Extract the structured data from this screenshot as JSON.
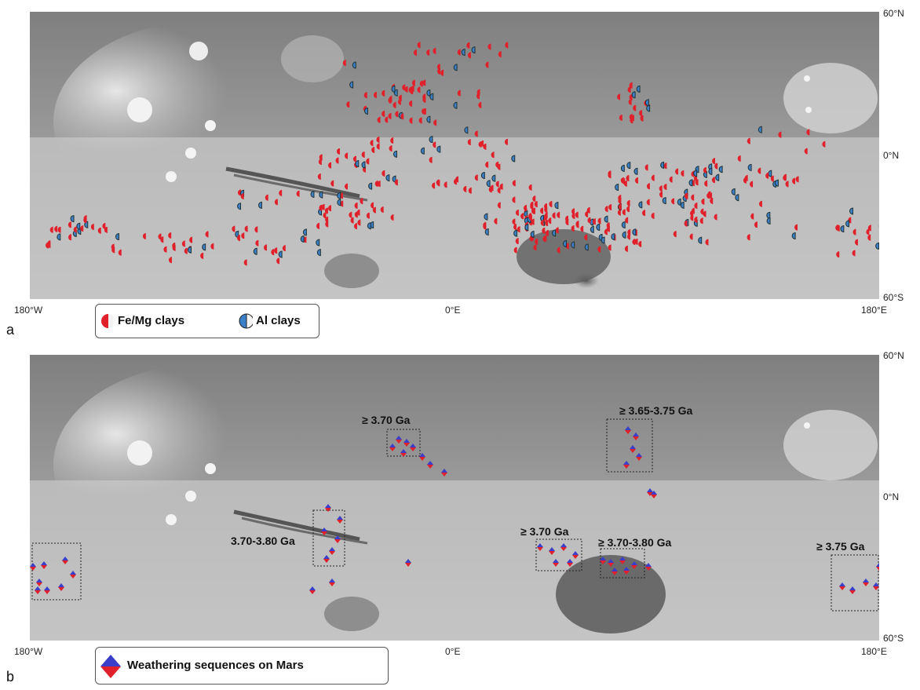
{
  "panel_a": {
    "label": "a",
    "lat_top": "60°N",
    "lat_mid": "0°N",
    "lat_bottom": "60°S",
    "lon_left": "180°W",
    "lon_mid": "0°E",
    "lon_right": "180°E",
    "legend": [
      {
        "label": "Fe/Mg clays",
        "color": "#e0202a",
        "icon": "half-circle-red-icon"
      },
      {
        "label": "Al clays",
        "color": "#3a7fc8",
        "icon": "half-circle-blue-icon"
      }
    ]
  },
  "panel_b": {
    "label": "b",
    "lat_top": "60°N",
    "lat_mid": "0°N",
    "lat_bottom": "60°S",
    "lon_left": "180°W",
    "lon_mid": "0°E",
    "lon_right": "180°E",
    "legend": [
      {
        "label": "Weathering sequences on Mars",
        "colors": [
          "#3b3ec8",
          "#e0202a"
        ],
        "icon": "diamond-icon"
      }
    ],
    "age_labels": [
      "≥ 3.70 Ga",
      "≥ 3.65-3.75 Ga",
      "3.70-3.80 Ga",
      "≥ 3.70 Ga",
      "≥ 3.70-3.80 Ga",
      "≥ 3.75 Ga"
    ]
  }
}
